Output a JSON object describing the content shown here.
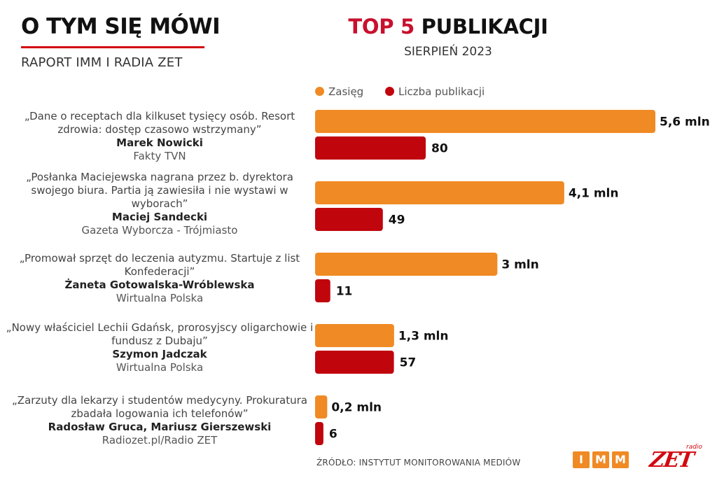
{
  "header": {
    "title": "O TYM SIĘ MÓWI",
    "subtitle": "RAPORT IMM I RADIA ZET",
    "top_word": "TOP 5",
    "top_rest": "PUBLIKACJI",
    "period": "SIERPIEŃ 2023"
  },
  "legend": {
    "reach_label": "Zasięg",
    "count_label": "Liczba publikacji"
  },
  "colors": {
    "reach": "#f08a24",
    "count": "#c0050d",
    "accent": "#d10a11"
  },
  "entries": [
    {
      "quote": "„Dane o receptach dla kilkuset tysięcy osób. Resort zdrowia: dostęp czasowo wstrzymany”",
      "author": "Marek Nowicki",
      "source": "Fakty TVN"
    },
    {
      "quote": "„Posłanka Maciejewska nagrana przez b. dyrektora swojego biura. Partia ją zawiesiła i nie wystawi w wyborach”",
      "author": "Maciej Sandecki",
      "source": "Gazeta Wyborcza - Trójmiasto"
    },
    {
      "quote": "„Promował sprzęt do leczenia autyzmu. Startuje z list Konfederacji”",
      "author": "Żaneta Gotowalska-Wróblewska",
      "source": "Wirtualna Polska"
    },
    {
      "quote": "„Nowy właściciel Lechii Gdańsk, prorosyjscy oligarchowie i fundusz z Dubaju”",
      "author": "Szymon Jadczak",
      "source": "Wirtualna Polska"
    },
    {
      "quote": "„Zarzuty dla lekarzy i studentów medycyny. Prokuratura zbadała logowania ich telefonów”",
      "author": "Radosław Gruca, Mariusz Gierszewski",
      "source": "Radiozet.pl/Radio ZET"
    }
  ],
  "chart_data": {
    "type": "bar",
    "orientation": "horizontal",
    "title": "TOP 5 PUBLIKACJI",
    "subtitle": "SIERPIEŃ 2023",
    "legend_position": "top",
    "series": [
      {
        "name": "Zasięg",
        "unit": "mln",
        "values": [
          5.6,
          4.1,
          3.0,
          1.3,
          0.2
        ],
        "labels": [
          "5,6 mln",
          "4,1 mln",
          "3 mln",
          "1,3 mln",
          "0,2 mln"
        ]
      },
      {
        "name": "Liczba publikacji",
        "values": [
          80,
          49,
          11,
          57,
          6
        ],
        "labels": [
          "80",
          "49",
          "11",
          "57",
          "6"
        ]
      }
    ]
  },
  "footer": {
    "source": "ŹRÓDŁO: INSTYTUT MONITOROWANIA MEDIÓW",
    "imm_letters": [
      "I",
      "M",
      "M"
    ],
    "zet_brand": "ZET",
    "zet_small": "radio"
  }
}
